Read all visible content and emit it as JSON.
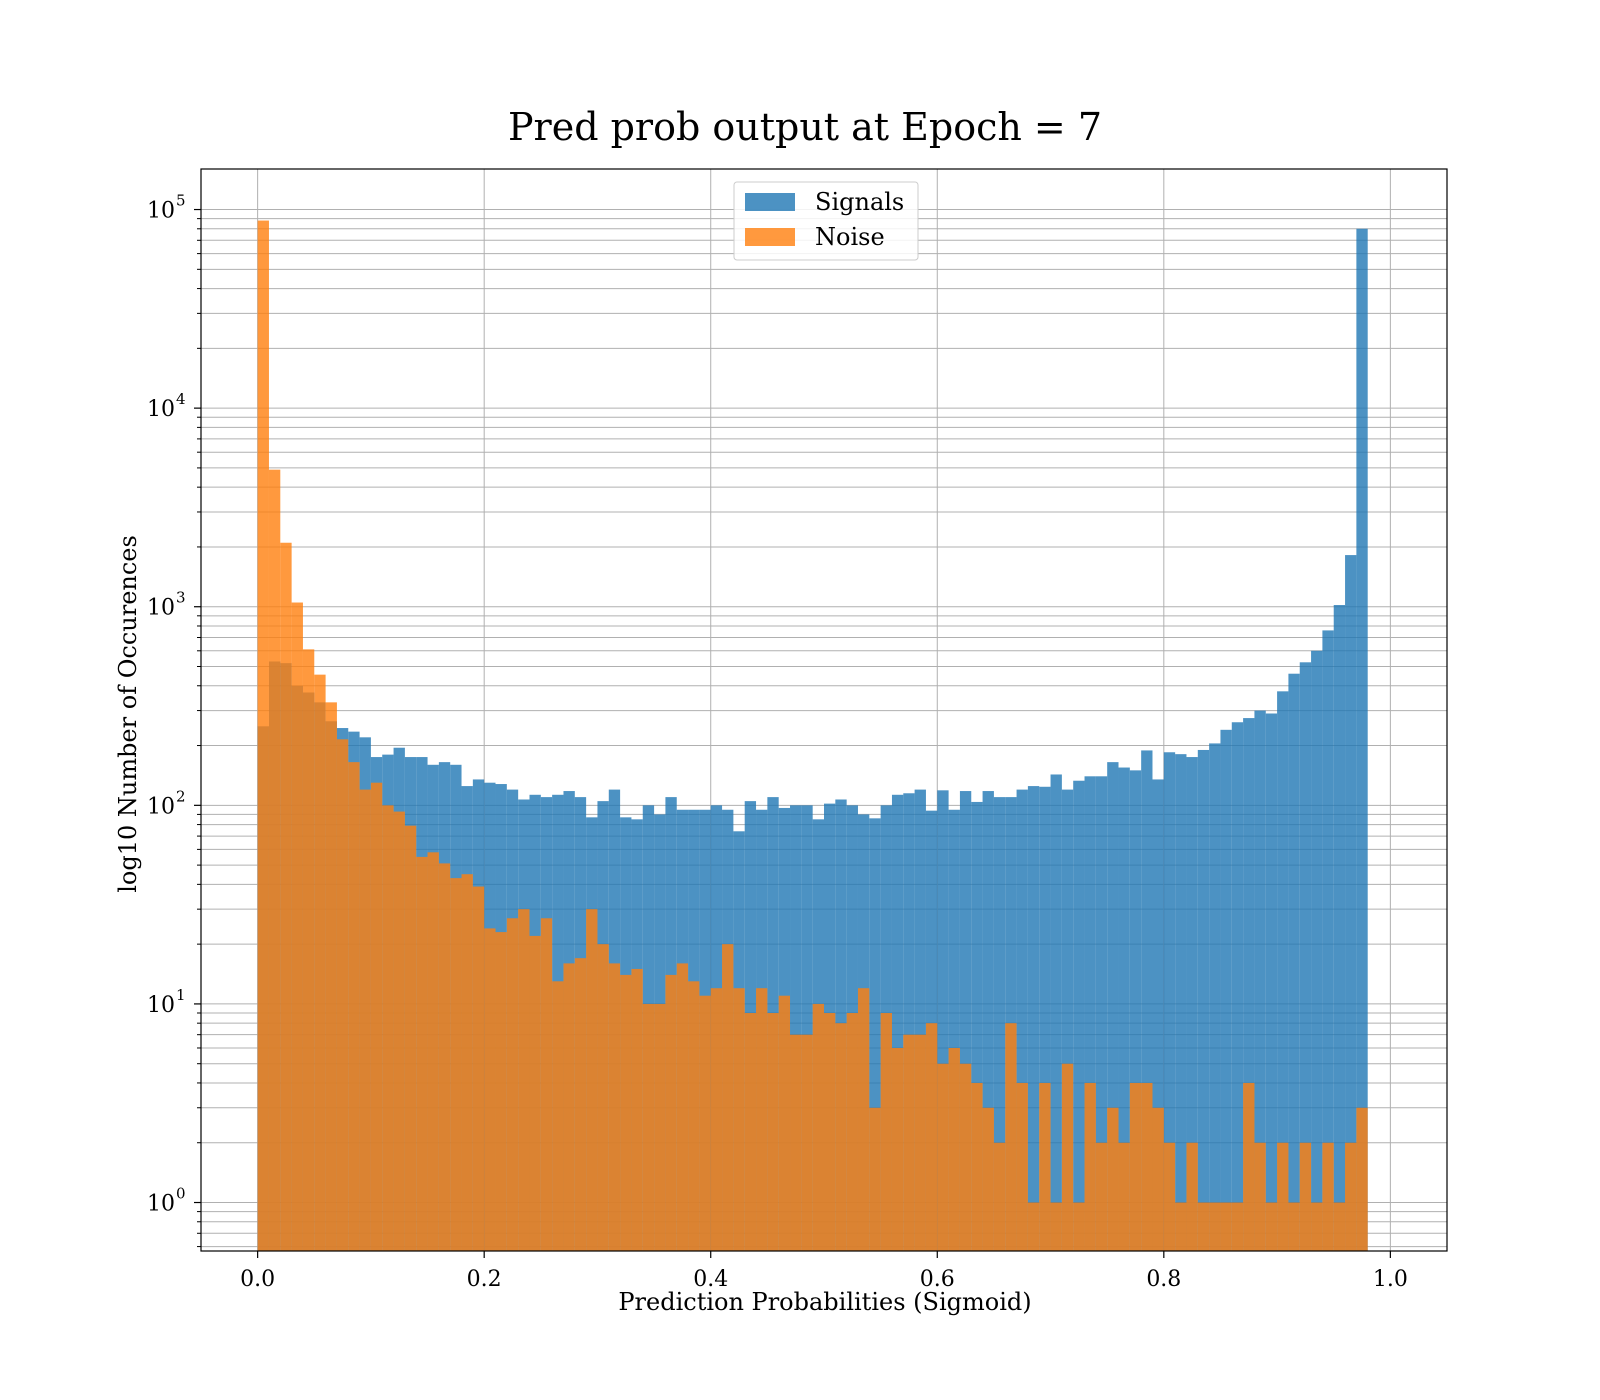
{
  "chart_data": {
    "type": "bar",
    "title": "Pred prob output at Epoch = 7",
    "xlabel": "Prediction Probabilities (Sigmoid)",
    "ylabel": "log10 Number of Occurences",
    "xlim": [
      -0.05,
      1.05
    ],
    "ylim": [
      0.57,
      160000
    ],
    "yscale": "log",
    "x_ticks": [
      0.0,
      0.2,
      0.4,
      0.6,
      0.8,
      1.0
    ],
    "x_tick_labels": [
      "0.0",
      "0.2",
      "0.4",
      "0.6",
      "0.8",
      "1.0"
    ],
    "y_ticks": [
      {
        "value": 1,
        "base": "10",
        "exp": "0"
      },
      {
        "value": 10,
        "base": "10",
        "exp": "1"
      },
      {
        "value": 100,
        "base": "10",
        "exp": "2"
      },
      {
        "value": 1000,
        "base": "10",
        "exp": "3"
      },
      {
        "value": 10000,
        "base": "10",
        "exp": "4"
      },
      {
        "value": 100000,
        "base": "10",
        "exp": "5"
      }
    ],
    "grid": true,
    "legend_position": "upper-center",
    "bin_range": [
      0,
      1
    ],
    "n_bins": 100,
    "series": [
      {
        "name": "Signals",
        "color": "#1f77b4",
        "values": [
          250,
          530,
          520,
          400,
          370,
          330,
          265,
          245,
          235,
          220,
          175,
          180,
          195,
          175,
          175,
          160,
          165,
          160,
          125,
          135,
          130,
          128,
          120,
          107,
          113,
          110,
          113,
          118,
          110,
          87,
          105,
          120,
          87,
          85,
          100,
          90,
          110,
          95,
          95,
          95,
          100,
          95,
          74,
          105,
          95,
          110,
          97,
          100,
          100,
          85,
          102,
          107,
          100,
          90,
          86,
          100,
          113,
          115,
          120,
          94,
          119,
          95,
          118,
          104,
          118,
          110,
          110,
          120,
          125,
          124,
          143,
          120,
          133,
          140,
          140,
          165,
          155,
          150,
          189,
          135,
          185,
          181,
          175,
          190,
          205,
          240,
          262,
          275,
          300,
          290,
          375,
          460,
          525,
          600,
          760,
          1020,
          1820,
          80000,
          0,
          0
        ]
      },
      {
        "name": "Noise",
        "color": "#ff7f0e",
        "values": [
          88000,
          4900,
          2100,
          1050,
          610,
          455,
          330,
          215,
          165,
          120,
          130,
          100,
          93,
          79,
          55,
          58,
          51,
          43,
          45,
          39,
          24,
          23,
          27,
          30,
          22,
          27,
          13,
          16,
          17,
          30,
          20,
          16,
          14,
          15,
          10,
          10,
          14,
          16,
          13,
          11,
          12,
          20,
          12,
          9,
          12,
          9,
          11,
          7,
          7,
          10,
          9,
          8,
          9,
          12,
          3,
          9,
          6,
          7,
          7,
          8,
          5,
          6,
          5,
          4,
          3,
          2,
          8,
          4,
          1,
          4,
          1,
          5,
          1,
          4,
          2,
          3,
          2,
          4,
          4,
          3,
          2,
          1,
          2,
          1,
          1,
          1,
          1,
          4,
          2,
          1,
          2,
          1,
          2,
          1,
          2,
          1,
          2,
          3,
          0,
          0
        ]
      }
    ]
  }
}
